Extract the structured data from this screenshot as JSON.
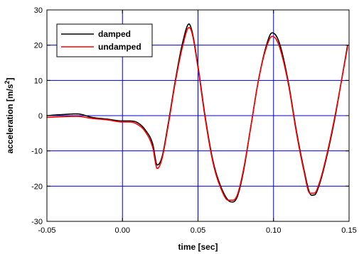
{
  "chart_data": {
    "type": "line",
    "title": "",
    "xlabel": "time [sec]",
    "ylabel": "acceleration [m/s",
    "ylabel_sup": "2",
    "ylabel_close": "]",
    "xlim": [
      -0.05,
      0.15
    ],
    "ylim": [
      -30,
      30
    ],
    "xticks": [
      -0.05,
      0.0,
      0.05,
      0.1,
      0.15
    ],
    "xtick_labels": [
      "-0.05",
      "0.00",
      "0.05",
      "0.10",
      "0.15"
    ],
    "yticks": [
      -30,
      -20,
      -10,
      0,
      10,
      20,
      30
    ],
    "ytick_labels": [
      "-30",
      "-20",
      "-10",
      "0",
      "10",
      "20",
      "30"
    ],
    "grid": true,
    "grid_color": "#0000cc",
    "legend_position": "top-left",
    "series": [
      {
        "name": "damped",
        "color": "#000000",
        "x": [
          -0.05,
          -0.04,
          -0.03,
          -0.02,
          -0.01,
          0.0,
          0.005,
          0.01,
          0.015,
          0.02,
          0.023,
          0.026,
          0.03,
          0.035,
          0.04,
          0.044,
          0.046,
          0.05,
          0.055,
          0.06,
          0.065,
          0.07,
          0.073,
          0.076,
          0.08,
          0.085,
          0.09,
          0.095,
          0.099,
          0.102,
          0.105,
          0.11,
          0.115,
          0.12,
          0.124,
          0.127,
          0.13,
          0.135,
          0.14,
          0.145,
          0.149
        ],
        "y": [
          0.0,
          0.3,
          0.5,
          -0.5,
          -1.0,
          -1.5,
          -1.5,
          -2.0,
          -4.0,
          -8.0,
          -14.0,
          -12.0,
          -3.0,
          10.0,
          21.0,
          26.0,
          24.0,
          14.0,
          -1.0,
          -13.0,
          -20.0,
          -24.0,
          -24.5,
          -23.0,
          -16.0,
          -3.0,
          10.0,
          19.5,
          23.5,
          22.5,
          19.0,
          9.0,
          -4.0,
          -15.0,
          -22.0,
          -22.5,
          -20.0,
          -12.0,
          -2.0,
          10.0,
          20.0
        ]
      },
      {
        "name": "undamped",
        "color": "#ff0000",
        "x": [
          -0.05,
          -0.04,
          -0.03,
          -0.02,
          -0.01,
          0.0,
          0.005,
          0.01,
          0.015,
          0.02,
          0.023,
          0.026,
          0.03,
          0.035,
          0.04,
          0.044,
          0.046,
          0.05,
          0.055,
          0.06,
          0.065,
          0.07,
          0.073,
          0.076,
          0.08,
          0.085,
          0.09,
          0.095,
          0.099,
          0.102,
          0.105,
          0.11,
          0.115,
          0.12,
          0.124,
          0.127,
          0.13,
          0.135,
          0.14,
          0.145,
          0.149
        ],
        "y": [
          -0.5,
          -0.3,
          -0.2,
          -0.8,
          -1.2,
          -1.8,
          -1.8,
          -2.5,
          -4.5,
          -9.0,
          -15.0,
          -12.5,
          -3.5,
          9.5,
          20.0,
          25.0,
          23.5,
          13.5,
          -1.5,
          -13.5,
          -20.5,
          -24.0,
          -24.0,
          -22.5,
          -15.5,
          -3.0,
          10.0,
          19.0,
          22.5,
          21.5,
          18.0,
          8.5,
          -4.5,
          -15.5,
          -22.0,
          -22.0,
          -19.5,
          -11.5,
          -1.5,
          10.0,
          19.5
        ]
      }
    ]
  }
}
